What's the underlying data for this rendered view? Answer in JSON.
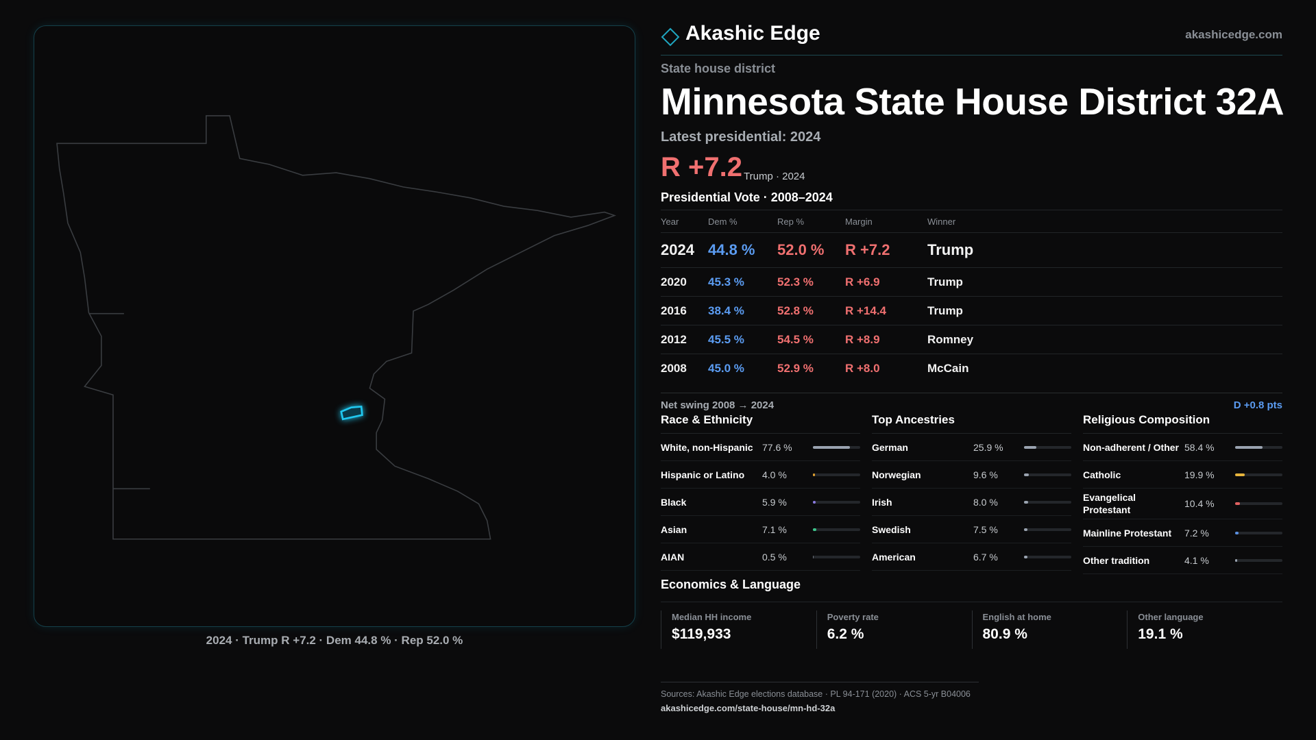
{
  "header": {
    "brand": "Akashic Edge",
    "site": "akashicedge.com"
  },
  "map": {
    "caption": "2024 · Trump R +7.2 · Dem 44.8 % · Rep 52.0 %"
  },
  "district": {
    "kind": "State house district",
    "title": "Minnesota State House District 32A",
    "latest_label": "Latest presidential: 2024",
    "margin": "R +7.2",
    "margin_note": "Trump · 2024"
  },
  "vote_table": {
    "title": "Presidential Vote · 2008–2024",
    "columns": [
      "Year",
      "Dem %",
      "Rep %",
      "Margin",
      "Winner"
    ],
    "rows": [
      [
        "2024",
        "44.8 %",
        "52.0 %",
        "R +7.2",
        "Trump"
      ],
      [
        "2020",
        "45.3 %",
        "52.3 %",
        "R +6.9",
        "Trump"
      ],
      [
        "2016",
        "38.4 %",
        "52.8 %",
        "R +14.4",
        "Trump"
      ],
      [
        "2012",
        "45.5 %",
        "54.5 %",
        "R +8.9",
        "Romney"
      ],
      [
        "2008",
        "45.0 %",
        "52.9 %",
        "R +8.0",
        "McCain"
      ]
    ],
    "swing_label": "Net swing 2008 → 2024",
    "swing_value": "D +0.8 pts"
  },
  "race": {
    "title": "Race & Ethnicity",
    "rows": [
      {
        "label": "White, non-Hispanic",
        "value": 77.6,
        "value_label": "77.6 %",
        "color": "#9aa3b0"
      },
      {
        "label": "Hispanic or Latino",
        "value": 4.0,
        "value_label": "4.0 %",
        "color": "#e0a030"
      },
      {
        "label": "Black",
        "value": 5.9,
        "value_label": "5.9 %",
        "color": "#8a7adf"
      },
      {
        "label": "Asian",
        "value": 7.1,
        "value_label": "7.1 %",
        "color": "#3cc48a"
      },
      {
        "label": "AIAN",
        "value": 0.5,
        "value_label": "0.5 %",
        "color": "#6b7078"
      }
    ]
  },
  "ancestry": {
    "title": "Top Ancestries",
    "rows": [
      {
        "label": "German",
        "value": 25.9,
        "value_label": "25.9 %",
        "color": "#9aa3b0"
      },
      {
        "label": "Norwegian",
        "value": 9.6,
        "value_label": "9.6 %",
        "color": "#9aa3b0"
      },
      {
        "label": "Irish",
        "value": 8.0,
        "value_label": "8.0 %",
        "color": "#9aa3b0"
      },
      {
        "label": "Swedish",
        "value": 7.5,
        "value_label": "7.5 %",
        "color": "#9aa3b0"
      },
      {
        "label": "American",
        "value": 6.7,
        "value_label": "6.7 %",
        "color": "#9aa3b0"
      }
    ]
  },
  "religion": {
    "title": "Religious Composition",
    "rows": [
      {
        "label": "Non-adherent / Other",
        "value": 58.4,
        "value_label": "58.4 %",
        "color": "#9aa3b0"
      },
      {
        "label": "Catholic",
        "value": 19.9,
        "value_label": "19.9 %",
        "color": "#e6b43c"
      },
      {
        "label": "Evangelical Protestant",
        "value": 10.4,
        "value_label": "10.4 %",
        "color": "#e06060"
      },
      {
        "label": "Mainline Protestant",
        "value": 7.2,
        "value_label": "7.2 %",
        "color": "#5a8fe0"
      },
      {
        "label": "Other tradition",
        "value": 4.1,
        "value_label": "4.1 %",
        "color": "#9aa3b0"
      }
    ]
  },
  "economics": {
    "title": "Economics & Language",
    "cards": [
      {
        "label": "Median HH income",
        "value": "$119,933"
      },
      {
        "label": "Poverty rate",
        "value": "6.2 %"
      },
      {
        "label": "English at home",
        "value": "80.9 %"
      },
      {
        "label": "Other language",
        "value": "19.1 %"
      }
    ]
  },
  "footer": {
    "sources": "Sources: Akashic Edge elections database · PL 94-171 (2020) · ACS 5-yr B04006",
    "url": "akashicedge.com/state-house/mn-hd-32a"
  }
}
